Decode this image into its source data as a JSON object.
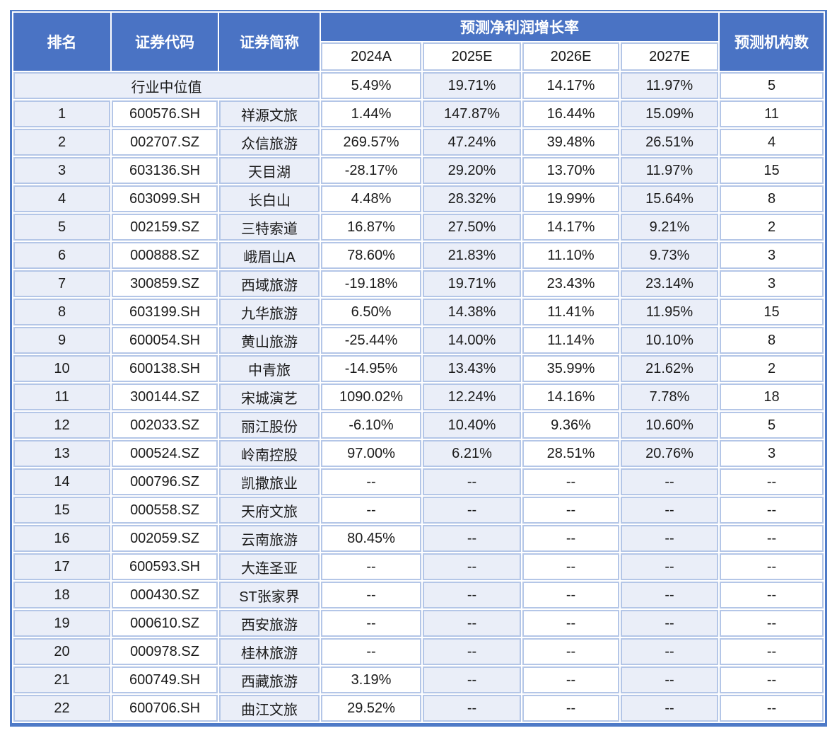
{
  "chart_data": {
    "type": "table",
    "title": "预测净利润增长率",
    "columns": [
      "排名",
      "证券代码",
      "证券简称",
      "2024A",
      "2025E",
      "2026E",
      "2027E",
      "预测机构数"
    ],
    "median_row": {
      "label": "行业中位值",
      "values": [
        "5.49%",
        "19.71%",
        "14.17%",
        "11.97%",
        "5"
      ]
    },
    "rows": [
      {
        "rank": "1",
        "code": "600576.SH",
        "name": "祥源文旅",
        "values": [
          "1.44%",
          "147.87%",
          "16.44%",
          "15.09%",
          "11"
        ]
      },
      {
        "rank": "2",
        "code": "002707.SZ",
        "name": "众信旅游",
        "values": [
          "269.57%",
          "47.24%",
          "39.48%",
          "26.51%",
          "4"
        ]
      },
      {
        "rank": "3",
        "code": "603136.SH",
        "name": "天目湖",
        "values": [
          "-28.17%",
          "29.20%",
          "13.70%",
          "11.97%",
          "15"
        ]
      },
      {
        "rank": "4",
        "code": "603099.SH",
        "name": "长白山",
        "values": [
          "4.48%",
          "28.32%",
          "19.99%",
          "15.64%",
          "8"
        ]
      },
      {
        "rank": "5",
        "code": "002159.SZ",
        "name": "三特索道",
        "values": [
          "16.87%",
          "27.50%",
          "14.17%",
          "9.21%",
          "2"
        ]
      },
      {
        "rank": "6",
        "code": "000888.SZ",
        "name": "峨眉山A",
        "values": [
          "78.60%",
          "21.83%",
          "11.10%",
          "9.73%",
          "3"
        ]
      },
      {
        "rank": "7",
        "code": "300859.SZ",
        "name": "西域旅游",
        "values": [
          "-19.18%",
          "19.71%",
          "23.43%",
          "23.14%",
          "3"
        ]
      },
      {
        "rank": "8",
        "code": "603199.SH",
        "name": "九华旅游",
        "values": [
          "6.50%",
          "14.38%",
          "11.41%",
          "11.95%",
          "15"
        ]
      },
      {
        "rank": "9",
        "code": "600054.SH",
        "name": "黄山旅游",
        "values": [
          "-25.44%",
          "14.00%",
          "11.14%",
          "10.10%",
          "8"
        ]
      },
      {
        "rank": "10",
        "code": "600138.SH",
        "name": "中青旅",
        "values": [
          "-14.95%",
          "13.43%",
          "35.99%",
          "21.62%",
          "2"
        ]
      },
      {
        "rank": "11",
        "code": "300144.SZ",
        "name": "宋城演艺",
        "values": [
          "1090.02%",
          "12.24%",
          "14.16%",
          "7.78%",
          "18"
        ]
      },
      {
        "rank": "12",
        "code": "002033.SZ",
        "name": "丽江股份",
        "values": [
          "-6.10%",
          "10.40%",
          "9.36%",
          "10.60%",
          "5"
        ]
      },
      {
        "rank": "13",
        "code": "000524.SZ",
        "name": "岭南控股",
        "values": [
          "97.00%",
          "6.21%",
          "28.51%",
          "20.76%",
          "3"
        ]
      },
      {
        "rank": "14",
        "code": "000796.SZ",
        "name": "凯撒旅业",
        "values": [
          "--",
          "--",
          "--",
          "--",
          "--"
        ]
      },
      {
        "rank": "15",
        "code": "000558.SZ",
        "name": "天府文旅",
        "values": [
          "--",
          "--",
          "--",
          "--",
          "--"
        ]
      },
      {
        "rank": "16",
        "code": "002059.SZ",
        "name": "云南旅游",
        "values": [
          "80.45%",
          "--",
          "--",
          "--",
          "--"
        ]
      },
      {
        "rank": "17",
        "code": "600593.SH",
        "name": "大连圣亚",
        "values": [
          "--",
          "--",
          "--",
          "--",
          "--"
        ]
      },
      {
        "rank": "18",
        "code": "000430.SZ",
        "name": "ST张家界",
        "values": [
          "--",
          "--",
          "--",
          "--",
          "--"
        ]
      },
      {
        "rank": "19",
        "code": "000610.SZ",
        "name": "西安旅游",
        "values": [
          "--",
          "--",
          "--",
          "--",
          "--"
        ]
      },
      {
        "rank": "20",
        "code": "000978.SZ",
        "name": "桂林旅游",
        "values": [
          "--",
          "--",
          "--",
          "--",
          "--"
        ]
      },
      {
        "rank": "21",
        "code": "600749.SH",
        "name": "西藏旅游",
        "values": [
          "3.19%",
          "--",
          "--",
          "--",
          "--"
        ]
      },
      {
        "rank": "22",
        "code": "600706.SH",
        "name": "曲江文旅",
        "values": [
          "29.52%",
          "--",
          "--",
          "--",
          "--"
        ]
      }
    ]
  },
  "colors": {
    "header_bg": "#4A73C4",
    "frame": "#4E7AC7",
    "cell_border": "#B4C6E7",
    "stripe_light": "#EAEEF8",
    "stripe_white": "#FFFFFF",
    "header_text": "#FFFFFF",
    "body_text": "#1A1A1A"
  }
}
